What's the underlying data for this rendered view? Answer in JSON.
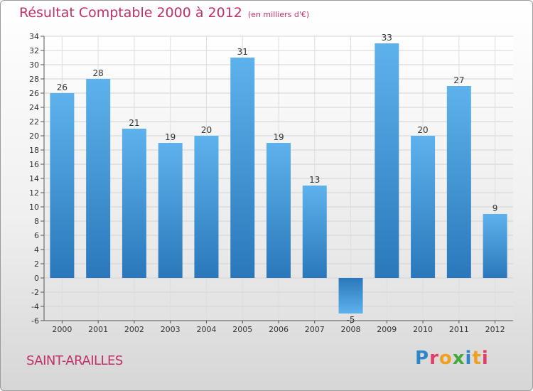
{
  "header": {
    "title": "Résultat Comptable 2000 à 2012",
    "subtitle": "(en milliers d'€)"
  },
  "footer": {
    "commune": "SAINT-ARAILLES",
    "logo": "Proxiti"
  },
  "colors": {
    "title": "#c0306a",
    "bar_light": "#5aaee8",
    "bar_dark": "#2a78bb",
    "logo_letters": [
      "#2e86c8",
      "#e23c6a",
      "#f0a020",
      "#46a83c",
      "#2e86c8",
      "#f0a020",
      "#e23c6a"
    ]
  },
  "chart_data": {
    "type": "bar",
    "title": "Résultat Comptable 2000 à 2012",
    "xlabel": "",
    "ylabel": "en milliers d'€",
    "categories": [
      "2000",
      "2001",
      "2002",
      "2003",
      "2004",
      "2005",
      "2006",
      "2007",
      "2008",
      "2009",
      "2010",
      "2011",
      "2012"
    ],
    "values": [
      26,
      28,
      21,
      19,
      20,
      31,
      19,
      13,
      -5,
      33,
      20,
      27,
      9
    ],
    "ylim": [
      -6,
      34
    ],
    "yticks": [
      -6,
      -4,
      -2,
      0,
      2,
      4,
      6,
      8,
      10,
      12,
      14,
      16,
      18,
      20,
      22,
      24,
      26,
      28,
      30,
      32,
      34
    ],
    "grid": true
  }
}
